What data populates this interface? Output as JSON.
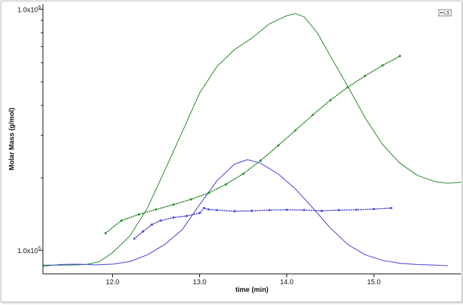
{
  "chart_data": {
    "type": "line",
    "title": "",
    "xlabel": "time (min)",
    "ylabel": "Molar Mass (g/mol)",
    "xlim": [
      11.2,
      16.0
    ],
    "yscale": "log",
    "ylim": [
      80000,
      1050000
    ],
    "x_ticks": [
      {
        "value": 12.0,
        "label": "12.0"
      },
      {
        "value": 13.0,
        "label": "13.0"
      },
      {
        "value": 14.0,
        "label": "14.0"
      },
      {
        "value": 15.0,
        "label": "15.0"
      }
    ],
    "y_tick_labels": [
      {
        "value": 1000000,
        "mantissa": "1.0x10",
        "exponent": "6"
      },
      {
        "value": 100000,
        "mantissa": "1.0x10",
        "exponent": "5"
      }
    ],
    "y_minor_ticks": [
      200000,
      300000,
      400000,
      500000,
      600000,
      700000,
      800000,
      900000
    ],
    "grid": false,
    "legend": {
      "position": "top-right",
      "label": "LS"
    },
    "colors": {
      "green": "#2e8b2e",
      "blue": "#4a48d8",
      "axis": "#000000"
    },
    "series": [
      {
        "style": "line",
        "color": "#2e8b2e",
        "x": [
          11.2,
          11.5,
          11.7,
          11.85,
          12.0,
          12.2,
          12.4,
          12.6,
          12.8,
          13.0,
          13.2,
          13.4,
          13.6,
          13.8,
          14.0,
          14.1,
          14.2,
          14.35,
          14.5,
          14.7,
          14.9,
          15.1,
          15.3,
          15.5,
          15.7,
          15.85,
          16.0
        ],
        "y": [
          87000,
          87000,
          87500,
          90000,
          98000,
          115000,
          150000,
          215000,
          310000,
          450000,
          580000,
          680000,
          760000,
          870000,
          940000,
          960000,
          930000,
          800000,
          640000,
          480000,
          355000,
          275000,
          230000,
          205000,
          193000,
          190000,
          192000
        ]
      },
      {
        "style": "line",
        "color": "#4a48d8",
        "x": [
          11.2,
          11.4,
          11.6,
          11.8,
          12.0,
          12.2,
          12.4,
          12.6,
          12.8,
          13.0,
          13.2,
          13.4,
          13.55,
          13.7,
          13.9,
          14.1,
          14.3,
          14.5,
          14.7,
          14.9,
          15.1,
          15.3,
          15.5,
          15.7,
          15.85
        ],
        "y": [
          86000,
          87500,
          87800,
          87200,
          87800,
          90000,
          96000,
          106000,
          122000,
          155000,
          195000,
          228000,
          238000,
          230000,
          208000,
          180000,
          150000,
          124000,
          106000,
          96000,
          91000,
          88500,
          87500,
          87000,
          86500
        ]
      },
      {
        "style": "dotted",
        "color": "#2e8b2e",
        "x": [
          11.92,
          12.1,
          12.3,
          12.5,
          12.7,
          12.9,
          13.1,
          13.3,
          13.5,
          13.7,
          13.9,
          14.1,
          14.3,
          14.5,
          14.7,
          14.9,
          15.1,
          15.3
        ],
        "y": [
          118000,
          133000,
          141000,
          148000,
          155000,
          163000,
          173000,
          188000,
          208000,
          236000,
          272000,
          315000,
          365000,
          420000,
          475000,
          530000,
          585000,
          640000
        ]
      },
      {
        "style": "dotted",
        "color": "#4a48d8",
        "x": [
          12.25,
          12.35,
          12.45,
          12.55,
          12.7,
          12.85,
          13.0,
          13.05,
          13.1,
          13.2,
          13.4,
          13.6,
          13.8,
          14.0,
          14.2,
          14.4,
          14.6,
          14.8,
          15.0,
          15.2
        ],
        "y": [
          112000,
          120000,
          128000,
          133000,
          137000,
          139000,
          143000,
          150000,
          148000,
          147000,
          145500,
          146000,
          147000,
          147500,
          147000,
          146000,
          147000,
          147500,
          148500,
          150000
        ]
      }
    ]
  }
}
